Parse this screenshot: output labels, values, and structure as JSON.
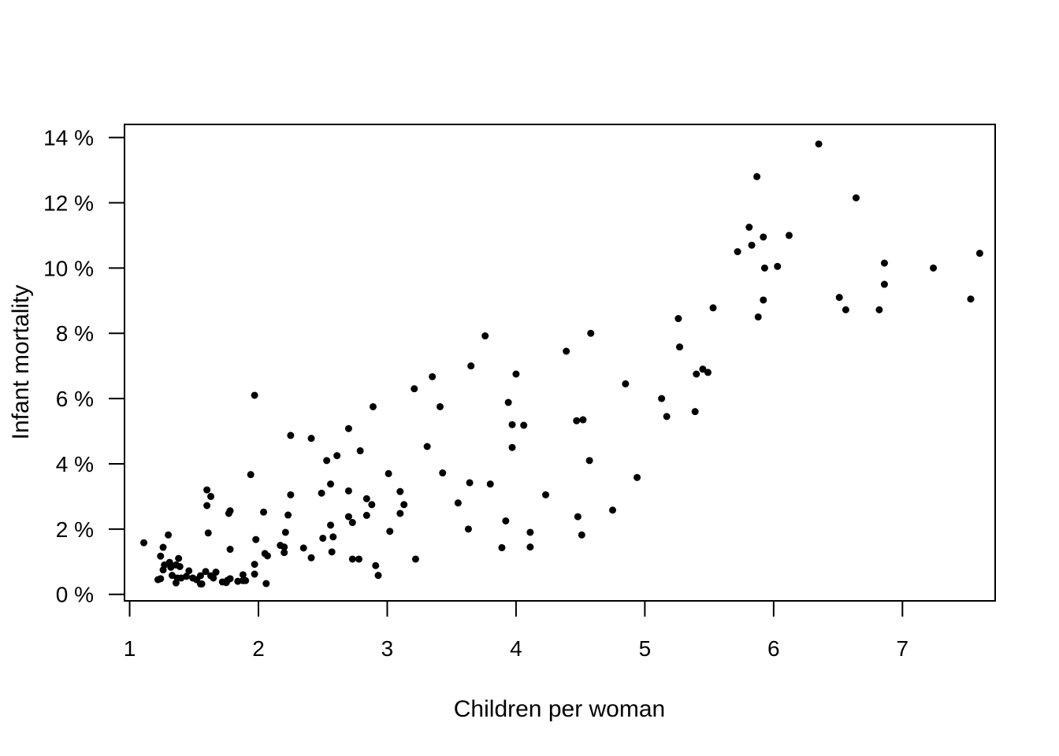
{
  "chart_data": {
    "type": "scatter",
    "title": "",
    "xlabel": "Children per woman",
    "ylabel": "Infant mortality",
    "xlim": [
      0.96,
      7.72
    ],
    "ylim": [
      -0.2,
      14.4
    ],
    "x_ticks": [
      1,
      2,
      3,
      4,
      5,
      6,
      7
    ],
    "x_tick_labels": [
      "1",
      "2",
      "3",
      "4",
      "5",
      "6",
      "7"
    ],
    "y_ticks": [
      0,
      2,
      4,
      6,
      8,
      10,
      12,
      14
    ],
    "y_tick_labels": [
      "0 %",
      "2 %",
      "4 %",
      "6 %",
      "8 %",
      "10 %",
      "12 %",
      "14 %"
    ],
    "grid": false,
    "legend": "none",
    "point_color": "#000000",
    "series": [
      {
        "points": [
          [
            6.35,
            13.8
          ],
          [
            5.87,
            12.8
          ],
          [
            6.64,
            12.15
          ],
          [
            5.81,
            11.25
          ],
          [
            5.92,
            10.95
          ],
          [
            6.12,
            11.0
          ],
          [
            5.83,
            10.7
          ],
          [
            5.72,
            10.5
          ],
          [
            7.6,
            10.45
          ],
          [
            6.86,
            10.15
          ],
          [
            6.03,
            10.05
          ],
          [
            5.93,
            10.0
          ],
          [
            7.24,
            10.0
          ],
          [
            6.86,
            9.5
          ],
          [
            6.51,
            9.1
          ],
          [
            7.53,
            9.05
          ],
          [
            5.92,
            9.02
          ],
          [
            5.53,
            8.78
          ],
          [
            6.56,
            8.72
          ],
          [
            6.82,
            8.72
          ],
          [
            5.88,
            8.5
          ],
          [
            5.26,
            8.45
          ],
          [
            3.76,
            7.92
          ],
          [
            4.58,
            8.0
          ],
          [
            5.27,
            7.58
          ],
          [
            4.39,
            7.45
          ],
          [
            3.65,
            7.0
          ],
          [
            5.45,
            6.9
          ],
          [
            5.49,
            6.8
          ],
          [
            5.4,
            6.75
          ],
          [
            4.0,
            6.75
          ],
          [
            3.35,
            6.67
          ],
          [
            4.85,
            6.45
          ],
          [
            3.21,
            6.3
          ],
          [
            1.97,
            6.1
          ],
          [
            5.13,
            6.0
          ],
          [
            3.94,
            5.88
          ],
          [
            2.89,
            5.75
          ],
          [
            3.41,
            5.75
          ],
          [
            5.39,
            5.6
          ],
          [
            5.17,
            5.45
          ],
          [
            4.52,
            5.35
          ],
          [
            4.47,
            5.32
          ],
          [
            3.97,
            5.2
          ],
          [
            4.06,
            5.18
          ],
          [
            2.7,
            5.08
          ],
          [
            2.25,
            4.87
          ],
          [
            2.41,
            4.78
          ],
          [
            3.31,
            4.53
          ],
          [
            3.97,
            4.5
          ],
          [
            2.79,
            4.4
          ],
          [
            2.61,
            4.25
          ],
          [
            2.53,
            4.1
          ],
          [
            4.57,
            4.1
          ],
          [
            3.8,
            3.38
          ],
          [
            3.43,
            3.72
          ],
          [
            3.01,
            3.7
          ],
          [
            1.94,
            3.67
          ],
          [
            4.94,
            3.58
          ],
          [
            2.56,
            3.38
          ],
          [
            3.64,
            3.42
          ],
          [
            2.49,
            3.1
          ],
          [
            2.7,
            3.17
          ],
          [
            3.1,
            3.15
          ],
          [
            1.6,
            3.2
          ],
          [
            2.25,
            3.05
          ],
          [
            4.23,
            3.05
          ],
          [
            1.63,
            3.0
          ],
          [
            2.84,
            2.93
          ],
          [
            2.88,
            2.75
          ],
          [
            3.13,
            2.75
          ],
          [
            3.55,
            2.8
          ],
          [
            1.6,
            2.72
          ],
          [
            4.75,
            2.58
          ],
          [
            1.78,
            2.56
          ],
          [
            1.77,
            2.48
          ],
          [
            2.04,
            2.52
          ],
          [
            3.1,
            2.48
          ],
          [
            2.23,
            2.43
          ],
          [
            2.84,
            2.42
          ],
          [
            4.48,
            2.38
          ],
          [
            2.7,
            2.38
          ],
          [
            3.92,
            2.25
          ],
          [
            2.73,
            2.2
          ],
          [
            2.56,
            2.12
          ],
          [
            3.63,
            2.0
          ],
          [
            3.02,
            1.93
          ],
          [
            4.11,
            1.9
          ],
          [
            1.61,
            1.88
          ],
          [
            2.21,
            1.9
          ],
          [
            2.58,
            1.76
          ],
          [
            4.51,
            1.82
          ],
          [
            1.3,
            1.82
          ],
          [
            2.5,
            1.72
          ],
          [
            1.98,
            1.68
          ],
          [
            1.11,
            1.58
          ],
          [
            2.17,
            1.5
          ],
          [
            2.2,
            1.45
          ],
          [
            3.89,
            1.43
          ],
          [
            4.11,
            1.45
          ],
          [
            1.26,
            1.44
          ],
          [
            2.35,
            1.42
          ],
          [
            1.78,
            1.38
          ],
          [
            2.57,
            1.3
          ],
          [
            2.2,
            1.28
          ],
          [
            2.05,
            1.25
          ],
          [
            2.07,
            1.18
          ],
          [
            1.24,
            1.17
          ],
          [
            1.38,
            1.1
          ],
          [
            2.41,
            1.12
          ],
          [
            2.73,
            1.08
          ],
          [
            2.78,
            1.08
          ],
          [
            3.22,
            1.08
          ],
          [
            1.31,
            0.98
          ],
          [
            1.27,
            0.9
          ],
          [
            1.36,
            0.9
          ],
          [
            1.97,
            0.92
          ],
          [
            1.39,
            0.85
          ],
          [
            1.32,
            0.83
          ],
          [
            2.91,
            0.88
          ],
          [
            1.26,
            0.75
          ],
          [
            1.46,
            0.72
          ],
          [
            1.59,
            0.7
          ],
          [
            1.67,
            0.68
          ],
          [
            1.88,
            0.6
          ],
          [
            1.97,
            0.62
          ],
          [
            1.33,
            0.58
          ],
          [
            1.44,
            0.55
          ],
          [
            1.55,
            0.57
          ],
          [
            1.63,
            0.57
          ],
          [
            2.93,
            0.58
          ],
          [
            1.37,
            0.5
          ],
          [
            1.4,
            0.5
          ],
          [
            1.49,
            0.5
          ],
          [
            1.65,
            0.5
          ],
          [
            1.78,
            0.48
          ],
          [
            1.24,
            0.48
          ],
          [
            1.22,
            0.45
          ],
          [
            1.52,
            0.45
          ],
          [
            1.76,
            0.43
          ],
          [
            1.88,
            0.42
          ],
          [
            1.9,
            0.42
          ],
          [
            1.84,
            0.4
          ],
          [
            1.72,
            0.38
          ],
          [
            1.75,
            0.36
          ],
          [
            1.36,
            0.35
          ],
          [
            1.56,
            0.32
          ],
          [
            2.06,
            0.33
          ],
          [
            1.55,
            0.32
          ]
        ]
      }
    ]
  }
}
